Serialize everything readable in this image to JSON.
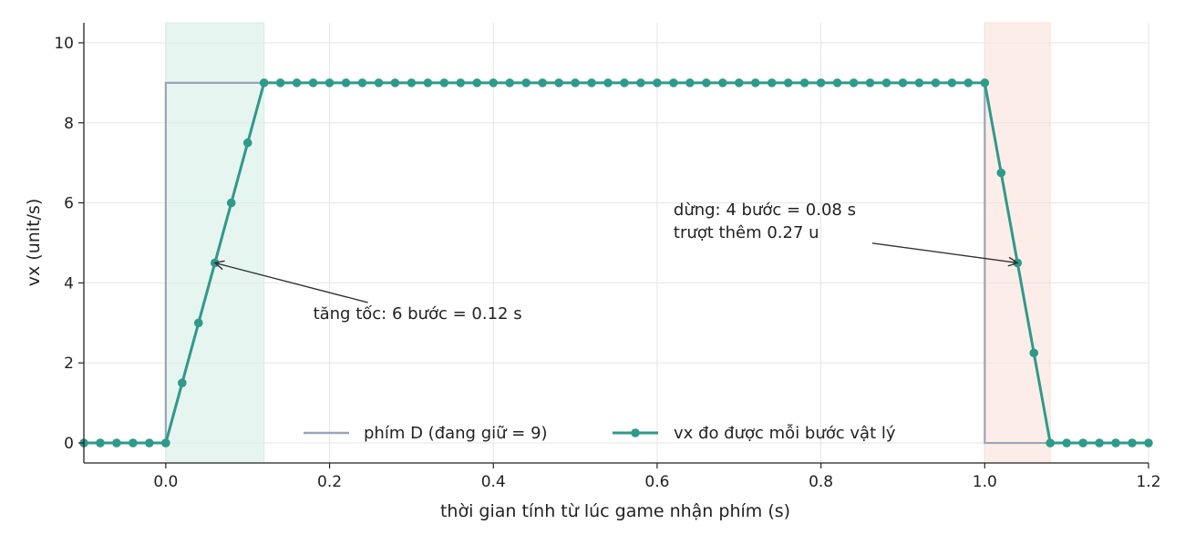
{
  "chart_data": {
    "type": "line",
    "xlabel": "thời gian tính từ lúc game nhận phím (s)",
    "ylabel": "vx (unit/s)",
    "xlim": [
      -0.1,
      1.2
    ],
    "ylim": [
      -0.5,
      10.5
    ],
    "xticks": [
      0.0,
      0.2,
      0.4,
      0.6,
      0.8,
      1.0,
      1.2
    ],
    "xtick_labels": [
      "0.0",
      "0.2",
      "0.4",
      "0.6",
      "0.8",
      "1.0",
      "1.2"
    ],
    "yticks": [
      0,
      2,
      4,
      6,
      8,
      10
    ],
    "ytick_labels": [
      "0",
      "2",
      "4",
      "6",
      "8",
      "10"
    ],
    "grid": true,
    "legend_position": "bottom-center",
    "shaded_regions": [
      {
        "x_start": 0.0,
        "x_end": 0.12,
        "color": "#d3ede3"
      },
      {
        "x_start": 1.0,
        "x_end": 1.08,
        "color": "#fbdfd6"
      }
    ],
    "series": [
      {
        "name": "phím D (đang giữ = 9)",
        "style": "step",
        "color": "#9aa6b5",
        "points": [
          [
            -0.1,
            0
          ],
          [
            0.0,
            0
          ],
          [
            0.0,
            9
          ],
          [
            1.0,
            9
          ],
          [
            1.0,
            0
          ],
          [
            1.2,
            0
          ]
        ]
      },
      {
        "name": "vx đo được mỗi bước vật lý",
        "style": "line-markers",
        "color": "#2e9a8a",
        "points": [
          [
            -0.1,
            0
          ],
          [
            -0.08,
            0
          ],
          [
            -0.06,
            0
          ],
          [
            -0.04,
            0
          ],
          [
            -0.02,
            0
          ],
          [
            0.0,
            0
          ],
          [
            0.02,
            1.5
          ],
          [
            0.04,
            3
          ],
          [
            0.06,
            4.5
          ],
          [
            0.08,
            6
          ],
          [
            0.1,
            7.5
          ],
          [
            0.12,
            9
          ],
          [
            0.14,
            9
          ],
          [
            0.16,
            9
          ],
          [
            0.18,
            9
          ],
          [
            0.2,
            9
          ],
          [
            0.22,
            9
          ],
          [
            0.24,
            9
          ],
          [
            0.26,
            9
          ],
          [
            0.28,
            9
          ],
          [
            0.3,
            9
          ],
          [
            0.32,
            9
          ],
          [
            0.34,
            9
          ],
          [
            0.36,
            9
          ],
          [
            0.38,
            9
          ],
          [
            0.4,
            9
          ],
          [
            0.42,
            9
          ],
          [
            0.44,
            9
          ],
          [
            0.46,
            9
          ],
          [
            0.48,
            9
          ],
          [
            0.5,
            9
          ],
          [
            0.52,
            9
          ],
          [
            0.54,
            9
          ],
          [
            0.56,
            9
          ],
          [
            0.58,
            9
          ],
          [
            0.6,
            9
          ],
          [
            0.62,
            9
          ],
          [
            0.64,
            9
          ],
          [
            0.66,
            9
          ],
          [
            0.68,
            9
          ],
          [
            0.7,
            9
          ],
          [
            0.72,
            9
          ],
          [
            0.74,
            9
          ],
          [
            0.76,
            9
          ],
          [
            0.78,
            9
          ],
          [
            0.8,
            9
          ],
          [
            0.82,
            9
          ],
          [
            0.84,
            9
          ],
          [
            0.86,
            9
          ],
          [
            0.88,
            9
          ],
          [
            0.9,
            9
          ],
          [
            0.92,
            9
          ],
          [
            0.94,
            9
          ],
          [
            0.96,
            9
          ],
          [
            0.98,
            9
          ],
          [
            1.0,
            9
          ],
          [
            1.02,
            6.75
          ],
          [
            1.04,
            4.5
          ],
          [
            1.06,
            2.25
          ],
          [
            1.08,
            0
          ],
          [
            1.1,
            0
          ],
          [
            1.12,
            0
          ],
          [
            1.14,
            0
          ],
          [
            1.16,
            0
          ],
          [
            1.18,
            0
          ],
          [
            1.2,
            0
          ]
        ]
      }
    ],
    "annotations": [
      {
        "lines": [
          "tăng tốc: 6 bước = 0.12 s"
        ],
        "text_x": 0.18,
        "text_y": 3.1,
        "arrow_to": [
          0.06,
          4.5
        ]
      },
      {
        "lines": [
          "dừng: 4 bước = 0.08 s",
          "trượt thêm 0.27 u"
        ],
        "text_x": 0.62,
        "text_y": 5.7,
        "arrow_to": [
          1.04,
          4.5
        ]
      }
    ]
  }
}
